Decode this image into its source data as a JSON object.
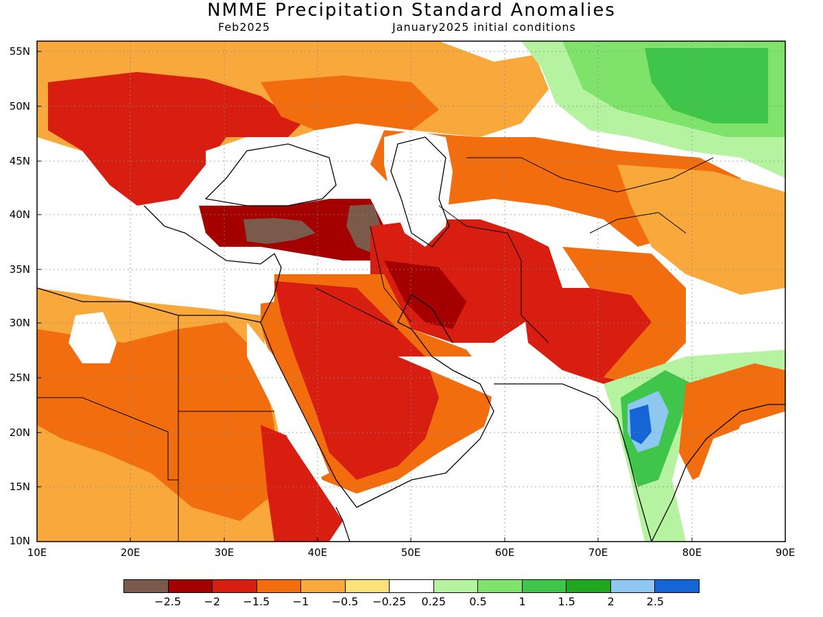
{
  "title": "NMME Precipitation Standard Anomalies",
  "subtitle_left": "Feb2025",
  "subtitle_right": "January2025 initial conditions",
  "lat_ticks": [
    "55N",
    "50N",
    "45N",
    "40N",
    "35N",
    "30N",
    "25N",
    "20N",
    "15N",
    "10N"
  ],
  "lon_ticks": [
    "10E",
    "20E",
    "30E",
    "40E",
    "50E",
    "60E",
    "70E",
    "80E",
    "90E"
  ],
  "legend": {
    "colors": [
      "#7a5a4a",
      "#a50000",
      "#d81e10",
      "#f26d0e",
      "#f9a83c",
      "#fde27a",
      "#ffffff",
      "#b6f3a0",
      "#7fe36b",
      "#3fc64a",
      "#1fa81f",
      "#8ec8f0",
      "#1565d6"
    ],
    "labels": [
      "−2.5",
      "−2",
      "−1.5",
      "−1",
      "−0.5",
      "−0.25",
      "0.25",
      "0.5",
      "1",
      "1.5",
      "2",
      "2.5"
    ]
  },
  "map_regions": [
    {
      "name": "east-africa-orange",
      "color": "#f26d0e"
    },
    {
      "name": "sahara-orange",
      "color": "#f9a83c"
    },
    {
      "name": "europe-red",
      "color": "#d81e10"
    },
    {
      "name": "turkey-darkred",
      "color": "#a50000"
    },
    {
      "name": "turkey-brown",
      "color": "#7a5a4a"
    },
    {
      "name": "arabia-red",
      "color": "#d81e10"
    },
    {
      "name": "iran-red",
      "color": "#d81e10"
    },
    {
      "name": "central-asia-orange",
      "color": "#f26d0e"
    },
    {
      "name": "siberia-green",
      "color": "#7fe36b"
    },
    {
      "name": "india-green",
      "color": "#3fc64a"
    },
    {
      "name": "india-blue",
      "color": "#1565d6"
    }
  ]
}
